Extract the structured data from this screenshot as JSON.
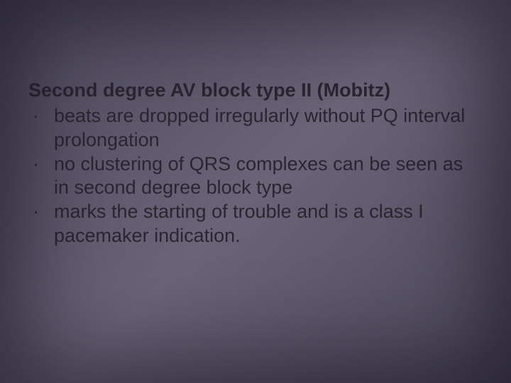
{
  "slide": {
    "background_gradient": [
      "#4a4758",
      "#5a5568",
      "#6a6478",
      "#5a5568",
      "#4a4758"
    ],
    "text_color": "#2a2530",
    "underline_color": "rgba(100,80,80,0.5)",
    "heading_fontsize": 27,
    "heading_fontweight": "bold",
    "body_fontsize": 27,
    "line_height": 1.25,
    "heading": "Second degree AV block type II (Mobitz)",
    "bullets": [
      " beats are dropped irregularly without PQ interval prolongation",
      "no clustering of QRS complexes can be seen as in second degree block type",
      "marks the starting of trouble and is a class I pacemaker indication."
    ]
  }
}
